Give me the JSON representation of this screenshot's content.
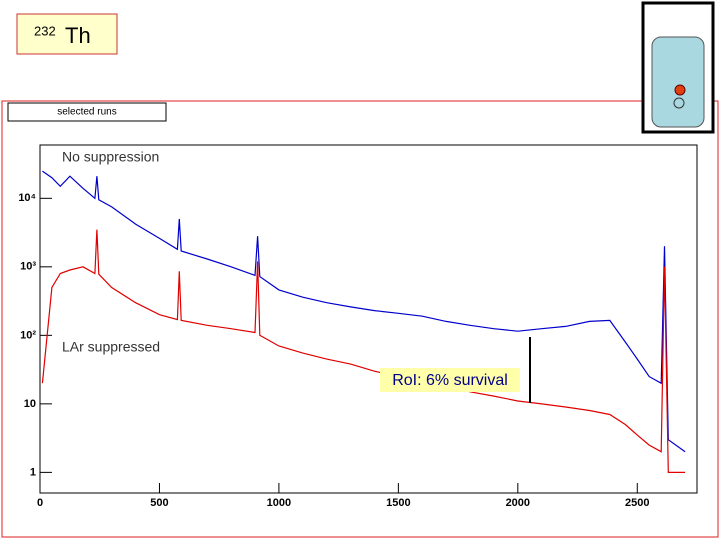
{
  "header": {
    "mass": "232",
    "symbol": "Th"
  },
  "panel_title": "selected runs",
  "chart_data": {
    "type": "line",
    "x": [
      10,
      50,
      85,
      125,
      180,
      230,
      238,
      246,
      300,
      400,
      500,
      575,
      583,
      591,
      700,
      800,
      900,
      911,
      920,
      1000,
      1100,
      1200,
      1300,
      1400,
      1500,
      1600,
      1700,
      1800,
      1900,
      2000,
      2100,
      2200,
      2300,
      2385,
      2450,
      2500,
      2550,
      2600,
      2614,
      2630,
      2700
    ],
    "series": [
      {
        "name": "No suppression",
        "color": "#0000cc",
        "values": [
          25000,
          20000,
          15000,
          21000,
          14000,
          10000,
          21000,
          9500,
          7500,
          4200,
          2600,
          1800,
          5000,
          1700,
          1300,
          1000,
          750,
          2800,
          720,
          460,
          360,
          300,
          260,
          230,
          210,
          190,
          160,
          140,
          125,
          115,
          125,
          135,
          160,
          165,
          80,
          45,
          25,
          20,
          2000,
          3,
          2
        ]
      },
      {
        "name": "LAr suppressed",
        "color": "#e00000",
        "values": [
          20,
          500,
          800,
          900,
          1000,
          800,
          3500,
          780,
          500,
          300,
          200,
          170,
          860,
          165,
          140,
          125,
          110,
          1200,
          100,
          70,
          55,
          45,
          38,
          30,
          25,
          21,
          18,
          15,
          13,
          11,
          10,
          9,
          8,
          7,
          5,
          3.5,
          2.5,
          2,
          1000,
          1,
          1
        ]
      }
    ],
    "xlim": [
      0,
      2750
    ],
    "xticks": [
      0,
      500,
      1000,
      1500,
      2000,
      2500
    ],
    "ylim": [
      0.5,
      60000
    ],
    "yticks": [
      1,
      10,
      {
        "value": 100,
        "label": "10²"
      },
      {
        "value": 1000,
        "label": "10³"
      },
      {
        "value": 10000,
        "label": "10⁴"
      }
    ],
    "log_y": true,
    "annotation": "RoI: 6% survival"
  }
}
